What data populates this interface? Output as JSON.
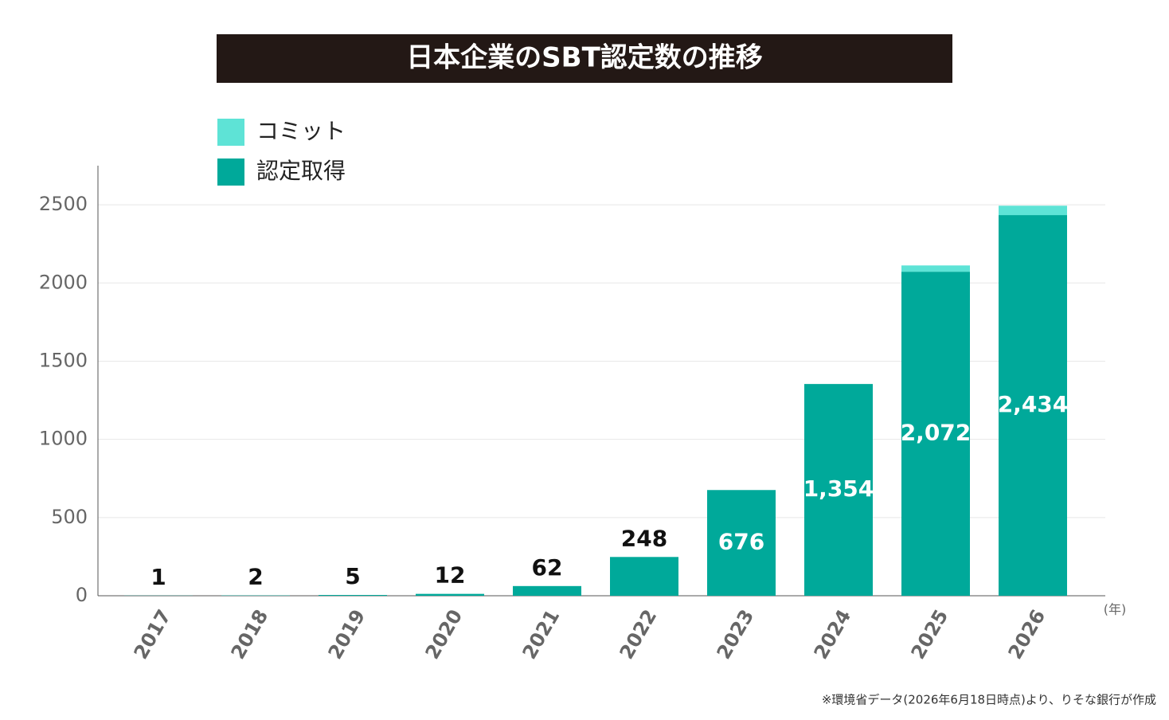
{
  "chart_data": {
    "type": "stacked_bar",
    "title": "日本企業のSBT認定数の推移",
    "categories": [
      "2017",
      "2018",
      "2019",
      "2020",
      "2021",
      "2022",
      "2023",
      "2024",
      "2025",
      "2026"
    ],
    "series": [
      {
        "name": "認定取得",
        "color": "#00a99a",
        "values": [
          1,
          2,
          5,
          12,
          62,
          248,
          676,
          1354,
          2072,
          2434
        ],
        "value_labels": [
          "1",
          "2",
          "5",
          "12",
          "62",
          "248",
          "676",
          "1,354",
          "2,072",
          "2,434"
        ]
      },
      {
        "name": "コミット",
        "color": "#5ee3d6",
        "values": [
          0,
          0,
          0,
          0,
          0,
          0,
          0,
          0,
          40,
          60
        ]
      }
    ],
    "ylim": [
      0,
      2750
    ],
    "yticks": [
      0,
      500,
      1000,
      1500,
      2000,
      2500
    ],
    "grid": true,
    "x_unit": "(年)",
    "source": "※環境省データ(2026年6月18日時点)より、りそな銀行が作成"
  }
}
